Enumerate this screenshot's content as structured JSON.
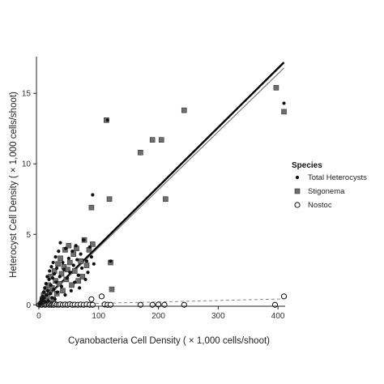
{
  "chart_data": {
    "type": "scatter",
    "xlabel": "Cyanobacteria Cell Density  ( × 1,000 cells/shoot)",
    "ylabel": "Heterocyst Cell Density  ( × 1,000 cells/shoot)",
    "xlim": [
      -4,
      412
    ],
    "ylim": [
      -0.1,
      17.6
    ],
    "xticks": [
      0,
      100,
      200,
      300,
      400
    ],
    "yticks": [
      0,
      5,
      10,
      15
    ],
    "grid": false,
    "legend": {
      "title": "Species",
      "placement": "right",
      "entries": [
        "Total Heterocysts",
        "Stigonema",
        "Nostoc"
      ]
    },
    "series": [
      {
        "name": "Total Heterocysts",
        "marker": "filled-circle",
        "color": "#111111",
        "points": [
          [
            2,
            0.05
          ],
          [
            3,
            0.2
          ],
          [
            4,
            0.4
          ],
          [
            5,
            0.1
          ],
          [
            6,
            0.6
          ],
          [
            7,
            0.3
          ],
          [
            8,
            0.9
          ],
          [
            9,
            0.5
          ],
          [
            10,
            1.2
          ],
          [
            11,
            0.2
          ],
          [
            12,
            1.5
          ],
          [
            13,
            0.7
          ],
          [
            14,
            2.0
          ],
          [
            15,
            1.0
          ],
          [
            16,
            0.3
          ],
          [
            17,
            1.8
          ],
          [
            18,
            2.4
          ],
          [
            19,
            0.8
          ],
          [
            20,
            1.4
          ],
          [
            21,
            2.7
          ],
          [
            22,
            0.5
          ],
          [
            23,
            1.9
          ],
          [
            24,
            3.0
          ],
          [
            25,
            1.1
          ],
          [
            26,
            2.2
          ],
          [
            27,
            0.4
          ],
          [
            28,
            3.4
          ],
          [
            29,
            1.6
          ],
          [
            30,
            2.6
          ],
          [
            31,
            0.9
          ],
          [
            33,
            3.8
          ],
          [
            35,
            2.0
          ],
          [
            36,
            4.4
          ],
          [
            38,
            1.3
          ],
          [
            40,
            3.0
          ],
          [
            42,
            2.5
          ],
          [
            44,
            0.7
          ],
          [
            45,
            4.0
          ],
          [
            47,
            1.9
          ],
          [
            50,
            3.3
          ],
          [
            52,
            2.3
          ],
          [
            54,
            1.0
          ],
          [
            56,
            3.8
          ],
          [
            58,
            2.8
          ],
          [
            60,
            1.6
          ],
          [
            62,
            4.2
          ],
          [
            64,
            3.2
          ],
          [
            66,
            2.1
          ],
          [
            68,
            1.2
          ],
          [
            70,
            3.6
          ],
          [
            72,
            2.6
          ],
          [
            75,
            4.6
          ],
          [
            78,
            1.8
          ],
          [
            80,
            3.1
          ],
          [
            82,
            2.3
          ],
          [
            85,
            4.1
          ],
          [
            88,
            3.4
          ],
          [
            90,
            7.8
          ],
          [
            92,
            2.9
          ],
          [
            115,
            13.1
          ],
          [
            120,
            3.1
          ],
          [
            410,
            14.3
          ]
        ]
      },
      {
        "name": "Stigonema",
        "marker": "filled-square",
        "color": "#6e6e6e",
        "points": [
          [
            4,
            0.1
          ],
          [
            6,
            0.4
          ],
          [
            8,
            0.7
          ],
          [
            10,
            0.3
          ],
          [
            12,
            1.1
          ],
          [
            14,
            0.6
          ],
          [
            16,
            1.4
          ],
          [
            18,
            0.9
          ],
          [
            20,
            2.0
          ],
          [
            22,
            1.2
          ],
          [
            24,
            0.4
          ],
          [
            26,
            2.4
          ],
          [
            28,
            1.7
          ],
          [
            30,
            0.8
          ],
          [
            32,
            2.9
          ],
          [
            34,
            1.5
          ],
          [
            36,
            3.3
          ],
          [
            38,
            2.2
          ],
          [
            40,
            1.0
          ],
          [
            42,
            2.7
          ],
          [
            44,
            3.9
          ],
          [
            46,
            1.8
          ],
          [
            48,
            2.5
          ],
          [
            50,
            4.2
          ],
          [
            52,
            3.0
          ],
          [
            55,
            1.4
          ],
          [
            58,
            3.6
          ],
          [
            60,
            2.4
          ],
          [
            63,
            4.0
          ],
          [
            66,
            1.7
          ],
          [
            70,
            3.1
          ],
          [
            73,
            2.0
          ],
          [
            76,
            4.6
          ],
          [
            80,
            2.8
          ],
          [
            84,
            3.9
          ],
          [
            88,
            6.9
          ],
          [
            90,
            4.3
          ],
          [
            113,
            13.1
          ],
          [
            118,
            7.5
          ],
          [
            120,
            3.0
          ],
          [
            122,
            1.1
          ],
          [
            170,
            10.8
          ],
          [
            190,
            11.7
          ],
          [
            205,
            11.7
          ],
          [
            212,
            7.5
          ],
          [
            243,
            13.8
          ],
          [
            397,
            15.4
          ],
          [
            410,
            13.7
          ]
        ]
      },
      {
        "name": "Nostoc",
        "marker": "open-circle",
        "color": "#111111",
        "points": [
          [
            1,
            0.0
          ],
          [
            3,
            0.02
          ],
          [
            5,
            0.0
          ],
          [
            7,
            0.05
          ],
          [
            9,
            0.01
          ],
          [
            11,
            0.0
          ],
          [
            13,
            0.03
          ],
          [
            15,
            0.1
          ],
          [
            17,
            0.0
          ],
          [
            19,
            0.04
          ],
          [
            21,
            0.0
          ],
          [
            23,
            0.02
          ],
          [
            25,
            0.0
          ],
          [
            27,
            0.06
          ],
          [
            30,
            0.01
          ],
          [
            33,
            0.0
          ],
          [
            36,
            0.03
          ],
          [
            40,
            0.0
          ],
          [
            44,
            0.02
          ],
          [
            48,
            0.0
          ],
          [
            52,
            0.04
          ],
          [
            56,
            0.0
          ],
          [
            60,
            0.01
          ],
          [
            65,
            0.0
          ],
          [
            70,
            0.02
          ],
          [
            75,
            0.0
          ],
          [
            80,
            0.03
          ],
          [
            85,
            0.0
          ],
          [
            88,
            0.4
          ],
          [
            90,
            0.0
          ],
          [
            105,
            0.6
          ],
          [
            110,
            0.02
          ],
          [
            115,
            0.0
          ],
          [
            120,
            0.0
          ],
          [
            170,
            0.0
          ],
          [
            190,
            0.0
          ],
          [
            200,
            0.02
          ],
          [
            210,
            0.0
          ],
          [
            243,
            0.0
          ],
          [
            395,
            0.0
          ],
          [
            410,
            0.6
          ]
        ]
      }
    ],
    "fit_lines": [
      {
        "name": "Total Heterocysts",
        "style": "solid",
        "width": 2.4,
        "color": "#000000",
        "x": [
          0,
          410
        ],
        "y": [
          0.0,
          17.2
        ]
      },
      {
        "name": "Stigonema",
        "style": "solid",
        "width": 1.2,
        "color": "#7a7a7a",
        "x": [
          0,
          410
        ],
        "y": [
          -0.05,
          16.8
        ]
      },
      {
        "name": "Nostoc",
        "style": "dashed",
        "width": 1.0,
        "color": "#888888",
        "x": [
          0,
          410
        ],
        "y": [
          0.0,
          0.42
        ]
      }
    ]
  }
}
